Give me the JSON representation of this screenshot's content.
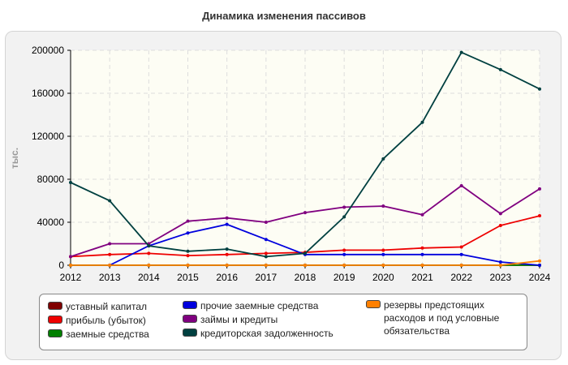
{
  "chart_data": {
    "type": "line",
    "title": "Динамика изменения пассивов",
    "ylabel": "тыс.",
    "xlabel": "",
    "ylim": [
      0,
      200000
    ],
    "yticks": [
      0,
      40000,
      80000,
      120000,
      160000,
      200000
    ],
    "ytick_labels": [
      "0",
      "40000",
      "80000",
      "120000",
      "160000",
      "200000"
    ],
    "categories": [
      "2012",
      "2013",
      "2014",
      "2015",
      "2016",
      "2017",
      "2018",
      "2019",
      "2020",
      "2021",
      "2022",
      "2023",
      "2024"
    ],
    "grid": true,
    "legend_position": "bottom",
    "series": [
      {
        "name": "уставный капитал",
        "color": "#800000",
        "values": [
          10,
          10,
          10,
          10,
          10,
          10,
          10,
          10,
          10,
          10,
          10,
          10,
          10
        ]
      },
      {
        "name": "прибыль (убыток)",
        "color": "#ee0000",
        "values": [
          8000,
          10000,
          11000,
          9000,
          10000,
          11000,
          12000,
          14000,
          14000,
          16000,
          17000,
          37000,
          46000
        ]
      },
      {
        "name": "заемные средства",
        "color": "#008000",
        "values": [
          0,
          0,
          0,
          0,
          0,
          0,
          0,
          0,
          0,
          0,
          0,
          0,
          0
        ]
      },
      {
        "name": "прочие заемные средства",
        "color": "#0000dd",
        "values": [
          null,
          0,
          18000,
          30000,
          38000,
          24000,
          10000,
          10000,
          10000,
          10000,
          10000,
          3000,
          0
        ]
      },
      {
        "name": "займы и кредиты",
        "color": "#800080",
        "values": [
          8000,
          20000,
          20000,
          41000,
          44000,
          40000,
          49000,
          54000,
          55000,
          47000,
          74000,
          48000,
          71000
        ]
      },
      {
        "name": "кредиторская задолженность",
        "color": "#004040",
        "values": [
          77000,
          60000,
          18000,
          13000,
          15000,
          8000,
          11000,
          45000,
          99000,
          133000,
          198000,
          182000,
          164000
        ]
      },
      {
        "name": "резервы предстоящих расходов и под условные обязательства",
        "color": "#ff8000",
        "values": [
          0,
          0,
          0,
          0,
          0,
          0,
          0,
          0,
          0,
          0,
          0,
          0,
          4000
        ]
      }
    ]
  }
}
